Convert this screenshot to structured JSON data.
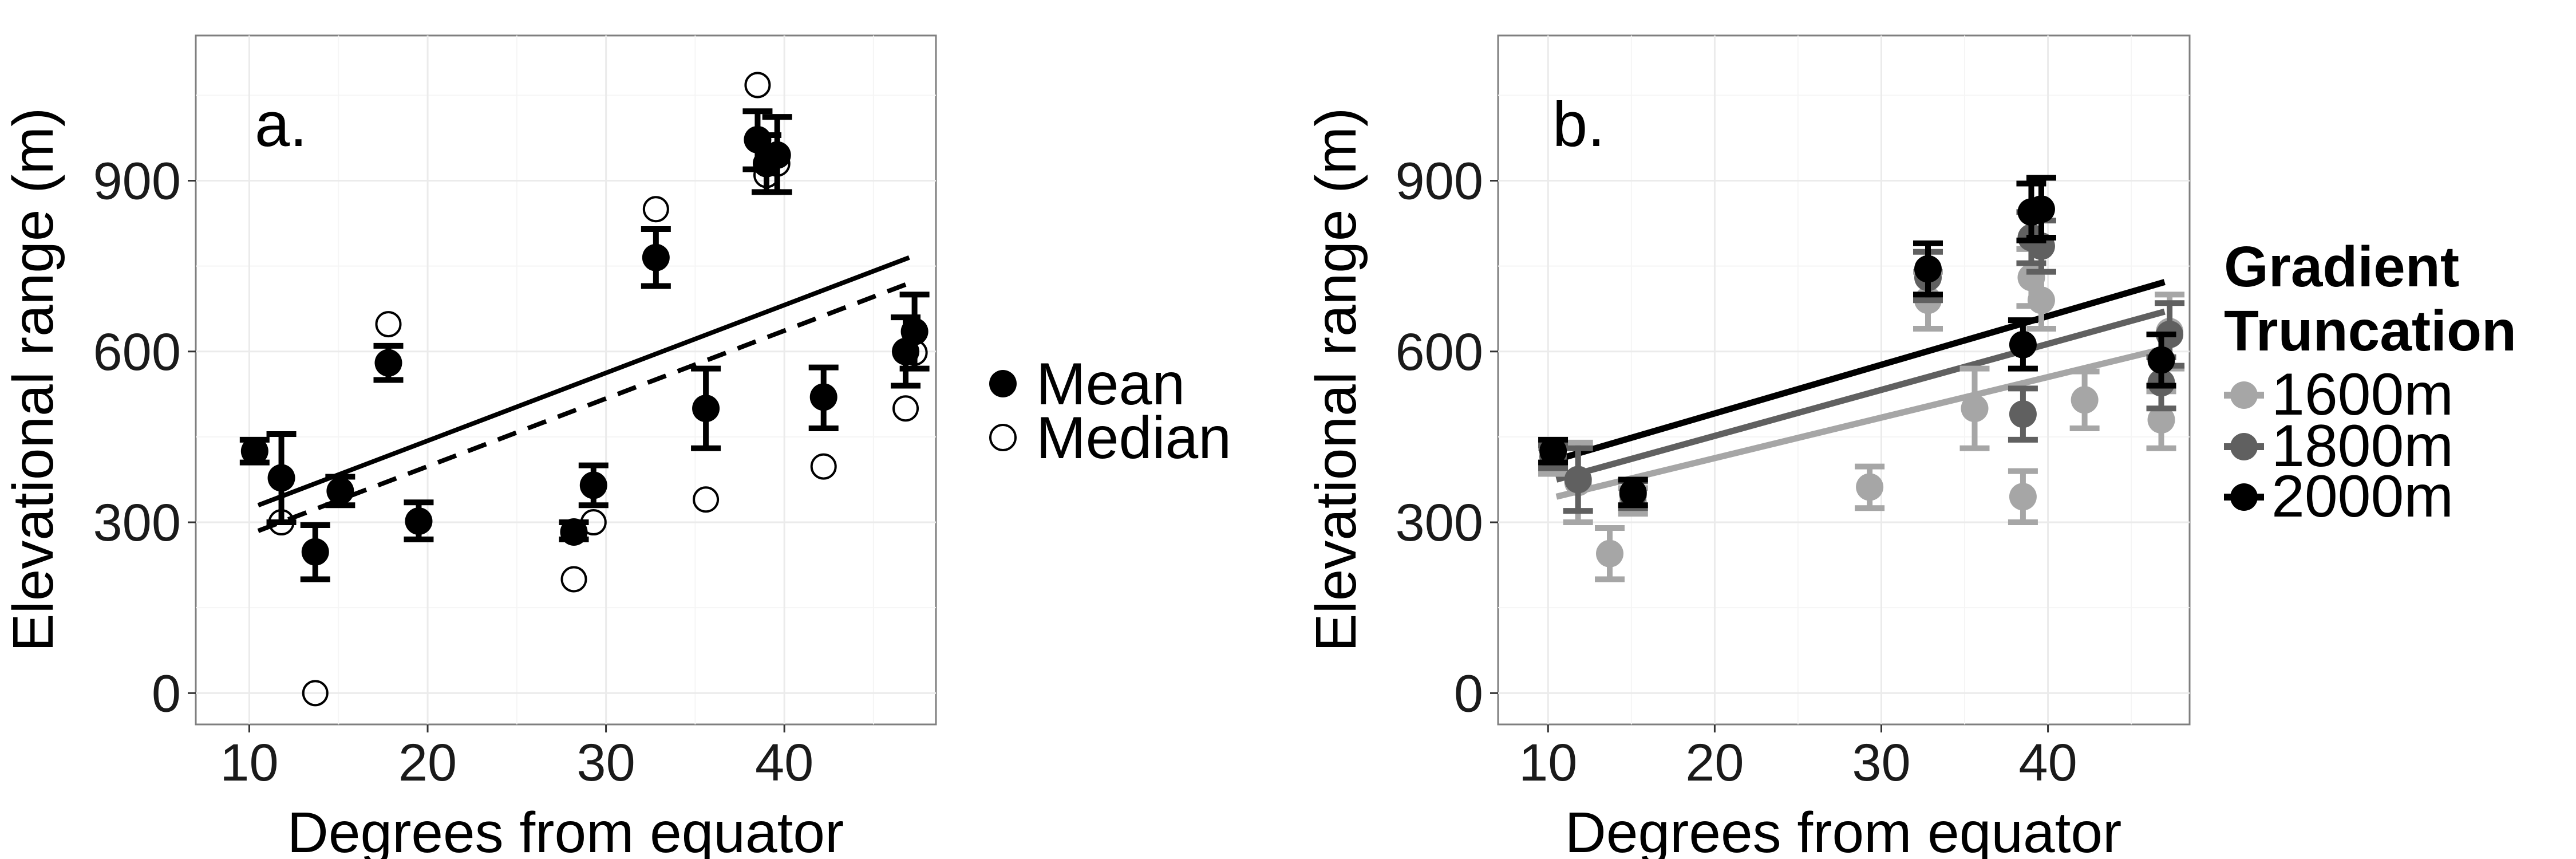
{
  "chart_data": [
    {
      "type": "scatter",
      "panel_label": "a.",
      "xlabel": "Degrees from equator",
      "ylabel": "Elevational range (m)",
      "xlim": [
        7,
        48.5
      ],
      "ylim": [
        -55,
        1155
      ],
      "xticks": [
        10,
        20,
        30,
        40
      ],
      "yticks": [
        0,
        300,
        600,
        900
      ],
      "grid": true,
      "legend": {
        "position": "right",
        "entries": [
          {
            "label": "Mean",
            "marker": "filled-circle"
          },
          {
            "label": "Median",
            "marker": "open-circle"
          }
        ]
      },
      "series": [
        {
          "name": "Mean",
          "marker": "filled-circle",
          "color": "#000000",
          "points": [
            {
              "x": 10.3,
              "y": 425,
              "lo": 405,
              "hi": 445
            },
            {
              "x": 11.8,
              "y": 378,
              "lo": 300,
              "hi": 455
            },
            {
              "x": 13.7,
              "y": 248,
              "lo": 200,
              "hi": 295
            },
            {
              "x": 15.1,
              "y": 355,
              "lo": 330,
              "hi": 380
            },
            {
              "x": 17.8,
              "y": 580,
              "lo": 550,
              "hi": 610
            },
            {
              "x": 19.5,
              "y": 302,
              "lo": 270,
              "hi": 335
            },
            {
              "x": 28.2,
              "y": 283,
              "lo": 270,
              "hi": 300
            },
            {
              "x": 29.3,
              "y": 365,
              "lo": 330,
              "hi": 400
            },
            {
              "x": 32.8,
              "y": 765,
              "lo": 715,
              "hi": 815
            },
            {
              "x": 35.6,
              "y": 500,
              "lo": 430,
              "hi": 570
            },
            {
              "x": 38.5,
              "y": 972,
              "lo": 920,
              "hi": 1022
            },
            {
              "x": 39.0,
              "y": 930,
              "lo": 880,
              "hi": 980
            },
            {
              "x": 39.6,
              "y": 945,
              "lo": 880,
              "hi": 1012
            },
            {
              "x": 42.2,
              "y": 520,
              "lo": 465,
              "hi": 572
            },
            {
              "x": 46.8,
              "y": 600,
              "lo": 540,
              "hi": 660
            },
            {
              "x": 47.3,
              "y": 635,
              "lo": 570,
              "hi": 700
            }
          ]
        },
        {
          "name": "Median",
          "marker": "open-circle",
          "color": "#000000",
          "points": [
            {
              "x": 11.8,
              "y": 300
            },
            {
              "x": 13.7,
              "y": 0
            },
            {
              "x": 17.8,
              "y": 648
            },
            {
              "x": 28.2,
              "y": 200
            },
            {
              "x": 29.3,
              "y": 300
            },
            {
              "x": 32.8,
              "y": 850
            },
            {
              "x": 35.6,
              "y": 340
            },
            {
              "x": 38.5,
              "y": 1068
            },
            {
              "x": 39.0,
              "y": 910
            },
            {
              "x": 39.6,
              "y": 930
            },
            {
              "x": 42.2,
              "y": 398
            },
            {
              "x": 46.8,
              "y": 500
            },
            {
              "x": 47.3,
              "y": 598
            }
          ]
        }
      ],
      "lines": [
        {
          "style": "solid",
          "color": "#000000",
          "x": [
            10.5,
            47.0
          ],
          "y": [
            330,
            765
          ]
        },
        {
          "style": "dashed",
          "color": "#000000",
          "x": [
            10.5,
            47.0
          ],
          "y": [
            285,
            720
          ]
        }
      ]
    },
    {
      "type": "scatter",
      "panel_label": "b.",
      "xlabel": "Degrees from equator",
      "ylabel": "Elevational range (m)",
      "xlim": [
        7,
        48.5
      ],
      "ylim": [
        -55,
        1155
      ],
      "xticks": [
        10,
        20,
        30,
        40
      ],
      "yticks": [
        0,
        300,
        600,
        900
      ],
      "grid": true,
      "legend": {
        "position": "right",
        "title_lines": [
          "Gradient",
          "Truncation"
        ],
        "entries": [
          {
            "label": "1600m",
            "color": "#a6a6a6"
          },
          {
            "label": "1800m",
            "color": "#606060"
          },
          {
            "label": "2000m",
            "color": "#000000"
          }
        ]
      },
      "series": [
        {
          "name": "1600m",
          "color": "#a6a6a6",
          "points": [
            {
              "x": 10.3,
              "y": 405,
              "lo": 385,
              "hi": 430
            },
            {
              "x": 11.8,
              "y": 370,
              "lo": 300,
              "hi": 440
            },
            {
              "x": 13.7,
              "y": 245,
              "lo": 200,
              "hi": 290
            },
            {
              "x": 15.1,
              "y": 335,
              "lo": 315,
              "hi": 360
            },
            {
              "x": 29.3,
              "y": 362,
              "lo": 325,
              "hi": 398
            },
            {
              "x": 32.8,
              "y": 690,
              "lo": 640,
              "hi": 740
            },
            {
              "x": 35.6,
              "y": 500,
              "lo": 430,
              "hi": 570
            },
            {
              "x": 38.5,
              "y": 345,
              "lo": 300,
              "hi": 390
            },
            {
              "x": 39.0,
              "y": 730,
              "lo": 680,
              "hi": 780
            },
            {
              "x": 39.6,
              "y": 690,
              "lo": 640,
              "hi": 740
            },
            {
              "x": 42.2,
              "y": 515,
              "lo": 465,
              "hi": 565
            },
            {
              "x": 46.8,
              "y": 480,
              "lo": 430,
              "hi": 530
            },
            {
              "x": 47.3,
              "y": 635,
              "lo": 570,
              "hi": 700
            }
          ]
        },
        {
          "name": "1800m",
          "color": "#606060",
          "points": [
            {
              "x": 10.3,
              "y": 415,
              "lo": 395,
              "hi": 435
            },
            {
              "x": 11.8,
              "y": 375,
              "lo": 320,
              "hi": 430
            },
            {
              "x": 15.1,
              "y": 348,
              "lo": 325,
              "hi": 372
            },
            {
              "x": 32.8,
              "y": 730,
              "lo": 690,
              "hi": 775
            },
            {
              "x": 38.5,
              "y": 490,
              "lo": 445,
              "hi": 535
            },
            {
              "x": 39.0,
              "y": 800,
              "lo": 755,
              "hi": 845
            },
            {
              "x": 39.6,
              "y": 785,
              "lo": 740,
              "hi": 830
            },
            {
              "x": 46.8,
              "y": 545,
              "lo": 500,
              "hi": 590
            },
            {
              "x": 47.3,
              "y": 630,
              "lo": 575,
              "hi": 685
            }
          ]
        },
        {
          "name": "2000m",
          "color": "#000000",
          "points": [
            {
              "x": 10.3,
              "y": 425,
              "lo": 405,
              "hi": 445
            },
            {
              "x": 15.1,
              "y": 352,
              "lo": 330,
              "hi": 375
            },
            {
              "x": 32.8,
              "y": 745,
              "lo": 700,
              "hi": 790
            },
            {
              "x": 38.5,
              "y": 612,
              "lo": 570,
              "hi": 655
            },
            {
              "x": 39.0,
              "y": 845,
              "lo": 795,
              "hi": 895
            },
            {
              "x": 39.6,
              "y": 850,
              "lo": 800,
              "hi": 905
            },
            {
              "x": 46.8,
              "y": 585,
              "lo": 540,
              "hi": 630
            }
          ]
        }
      ],
      "lines": [
        {
          "series": "1600m",
          "color": "#a6a6a6",
          "x": [
            10.5,
            47.0
          ],
          "y": [
            345,
            605
          ]
        },
        {
          "series": "1800m",
          "color": "#606060",
          "x": [
            10.5,
            47.0
          ],
          "y": [
            375,
            670
          ]
        },
        {
          "series": "2000m",
          "color": "#000000",
          "x": [
            10.5,
            47.0
          ],
          "y": [
            410,
            722
          ]
        }
      ]
    }
  ]
}
